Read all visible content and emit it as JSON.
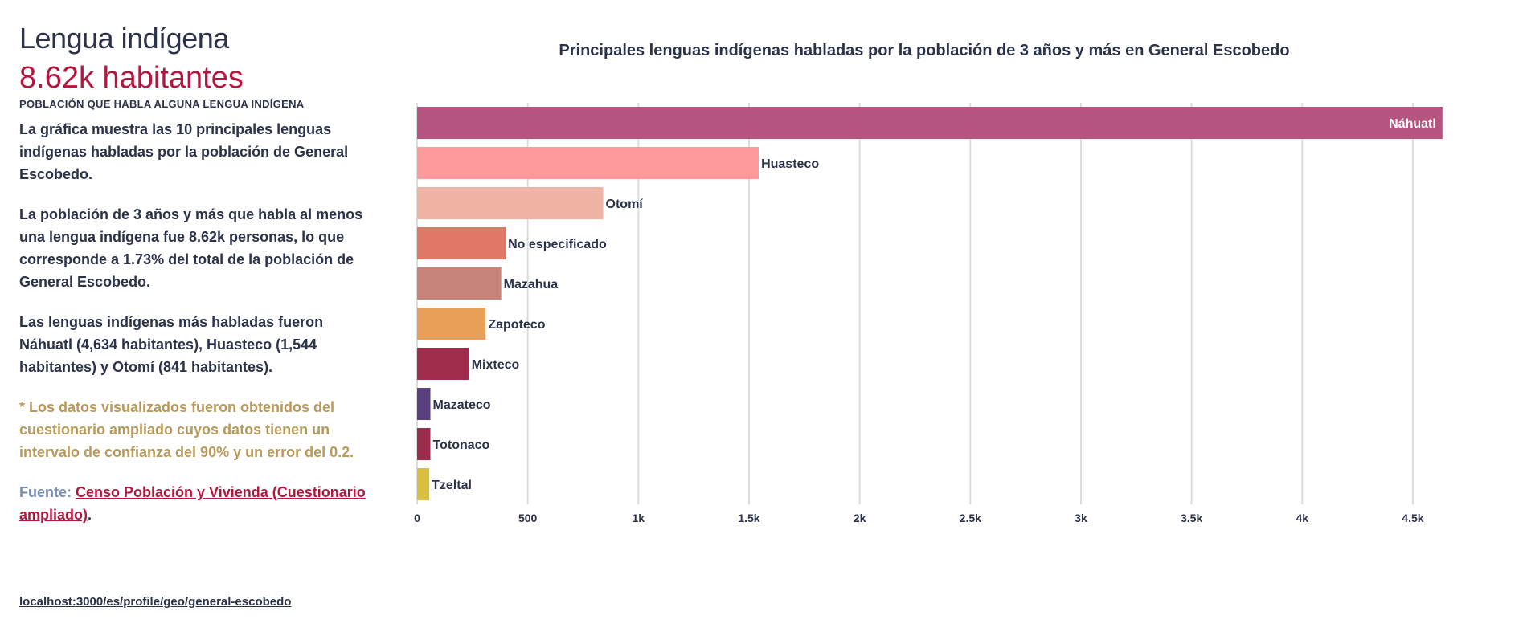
{
  "sidebar": {
    "section_title": "Lengua indígena",
    "stat_value": "8.62k habitantes",
    "stat_label": "Población que habla alguna lengua indígena",
    "paragraph_1": "La gráfica muestra las 10 principales lenguas indígenas habladas por la población de General Escobedo.",
    "paragraph_2": "La población de 3 años y más que habla al menos una lengua indígena fue 8.62k personas, lo que corresponde a 1.73% del total de la población de General Escobedo.",
    "paragraph_3": "Las lenguas indígenas más habladas fueron Náhuatl (4,634 habitantes), Huasteco (1,544 habitantes) y Otomí (841 habitantes).",
    "note": "* Los datos visualizados fueron obtenidos del cuestionario ampliado cuyos datos tienen un intervalo de confianza del 90% y un error del 0.2.",
    "source_label": "Fuente:",
    "source_link": "Censo Población y Vivienda (Cuestionario ampliado)",
    "source_end": "."
  },
  "footer": {
    "url": "localhost:3000/es/profile/geo/general-escobedo"
  },
  "chart_data": {
    "type": "bar",
    "orientation": "horizontal",
    "title": "Principales lenguas indígenas habladas por la población de 3 años y más en General Escobedo",
    "xlabel": "",
    "ylabel": "",
    "xlim": [
      0,
      4700
    ],
    "grid": true,
    "x_ticks": [
      0,
      500,
      1000,
      1500,
      2000,
      2500,
      3000,
      3500,
      4000,
      4500
    ],
    "x_tick_labels": [
      "0",
      "500",
      "1k",
      "1.5k",
      "2k",
      "2.5k",
      "3k",
      "3.5k",
      "4k",
      "4.5k"
    ],
    "categories": [
      "Náhuatl",
      "Huasteco",
      "Otomí",
      "No especificado",
      "Mazahua",
      "Zapoteco",
      "Mixteco",
      "Mazateco",
      "Totonaco",
      "Tzeltal"
    ],
    "values": [
      4634,
      1544,
      841,
      400,
      380,
      310,
      235,
      60,
      60,
      55
    ],
    "colors": [
      "#b5547f",
      "#ff9a9a",
      "#f0b4a4",
      "#e07868",
      "#c88478",
      "#e8a058",
      "#a12d4c",
      "#5a3f7e",
      "#9c2c4c",
      "#d9c040"
    ]
  }
}
